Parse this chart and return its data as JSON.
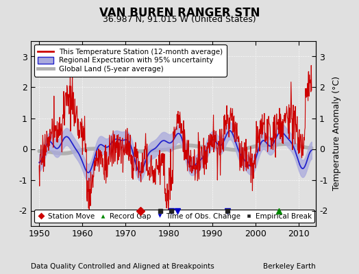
{
  "title": "VAN BUREN RANGER STN",
  "subtitle": "36.987 N, 91.015 W (United States)",
  "ylabel": "Temperature Anomaly (°C)",
  "xlabel_note": "Data Quality Controlled and Aligned at Breakpoints",
  "source_note": "Berkeley Earth",
  "ylim": [
    -2.5,
    3.5
  ],
  "xlim": [
    1948,
    2014
  ],
  "yticks": [
    -2,
    -1,
    0,
    1,
    2,
    3
  ],
  "xticks": [
    1950,
    1960,
    1970,
    1980,
    1990,
    2000,
    2010
  ],
  "bg_color": "#e0e0e0",
  "plot_bg_color": "#e0e0e0",
  "station_color": "#cc0000",
  "regional_line_color": "#2222cc",
  "regional_fill_color": "#aaaadd",
  "global_color": "#b0b0b0",
  "legend_items": [
    "This Temperature Station (12-month average)",
    "Regional Expectation with 95% uncertainty",
    "Global Land (5-year average)"
  ],
  "marker_station_move": {
    "years": [
      1973.5
    ],
    "color": "#cc0000",
    "marker": "D"
  },
  "marker_record_gap": {
    "years": [
      2005.5
    ],
    "color": "#008800",
    "marker": "^"
  },
  "marker_time_obs": {
    "years": [
      1980.5,
      1982.0,
      1993.5
    ],
    "color": "#0000cc",
    "marker": "v"
  },
  "marker_empirical": {
    "years": [
      1978.0,
      1980.5,
      1993.5
    ],
    "color": "#222222",
    "marker": "s"
  }
}
